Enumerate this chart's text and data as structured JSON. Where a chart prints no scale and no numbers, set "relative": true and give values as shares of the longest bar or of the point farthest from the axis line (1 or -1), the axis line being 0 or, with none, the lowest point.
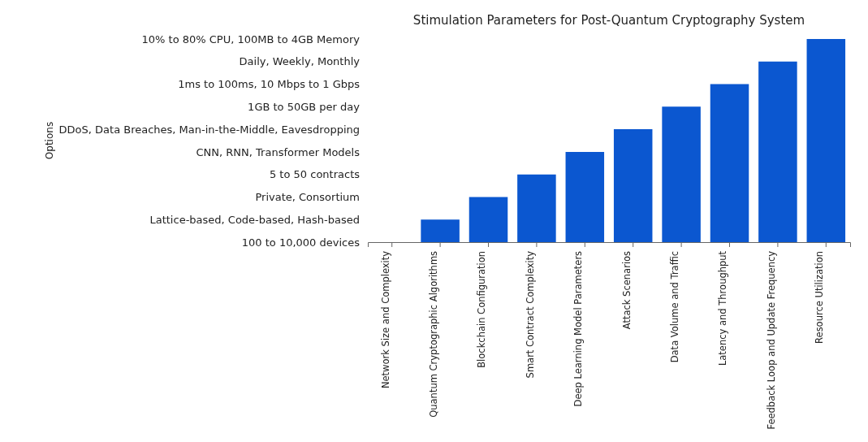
{
  "chart_data": {
    "type": "bar",
    "title": "Stimulation Parameters for Post-Quantum Cryptography System",
    "relative": true,
    "categories": [
      "Network Size and Complexity",
      "Quantum Cryptographic Algorithms",
      "Blockchain Configuration",
      "Smart Contract Complexity",
      "Deep Learning Model Parameters",
      "Attack Scenarios",
      "Data Volume and Traffic",
      "Latency and Throughput",
      "Feedback Loop and Update Frequency",
      "Resource Utilization"
    ],
    "values": [
      0,
      0.111,
      0.222,
      0.333,
      0.444,
      0.556,
      0.667,
      0.778,
      0.889,
      1
    ],
    "color": "#0b57d0",
    "annotations": [
      "100 to 10,000 devices",
      "Lattice-based, Code-based, Hash-based",
      "Private, Consortium",
      "5 to 50 contracts",
      "CNN, RNN, Transformer Models",
      "DDoS, Data Breaches, Man-in-the-Middle, Eavesdropping",
      "1GB to 50GB per day",
      "1ms to 100ms, 10 Mbps to 1 Gbps",
      "Daily, Weekly, Monthly",
      "10% to 80% CPU, 100MB to 4GB Memory",
      "Options"
    ]
  }
}
